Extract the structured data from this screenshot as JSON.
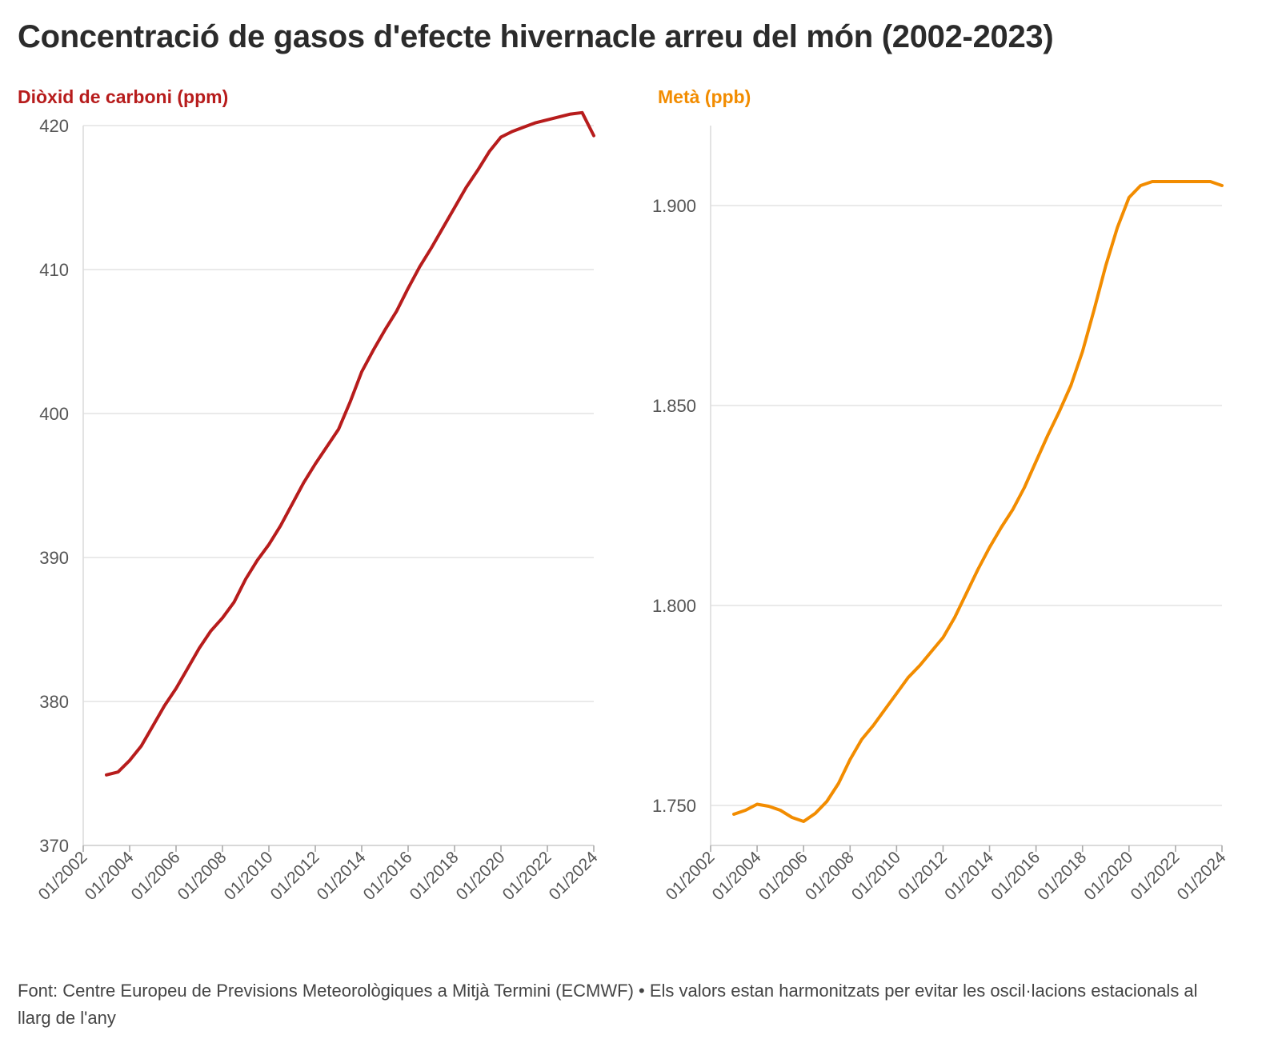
{
  "title": "Concentració de gasos d'efecte hivernacle arreu del món (2002-2023)",
  "footer": "Font: Centre Europeu de Previsions Meteorològiques a Mitjà Termini (ECMWF) • Els valors estan harmonitzats per evitar les oscil·lacions estacionals al llarg de l'any",
  "chart_data": [
    {
      "type": "line",
      "title": "Diòxid de carboni (ppm)",
      "title_color": "#b71c1c",
      "line_color": "#b71c1c",
      "xlabel": "",
      "ylabel": "",
      "xlim": [
        "2002-01",
        "2024-01"
      ],
      "ylim": [
        370,
        420
      ],
      "x_ticks": [
        "01/2002",
        "01/2004",
        "01/2006",
        "01/2008",
        "01/2010",
        "01/2012",
        "01/2014",
        "01/2016",
        "01/2018",
        "01/2020",
        "01/2022",
        "01/2024"
      ],
      "y_ticks": [
        370,
        380,
        390,
        400,
        410,
        420
      ],
      "y_tick_labels": [
        "370",
        "380",
        "390",
        "400",
        "410",
        "420"
      ],
      "grid": true,
      "series": [
        {
          "x": [
            "2003-01",
            "2003-07",
            "2004-01",
            "2004-07",
            "2005-01",
            "2005-07",
            "2006-01",
            "2006-07",
            "2007-01",
            "2007-07",
            "2008-01",
            "2008-07",
            "2009-01",
            "2009-07",
            "2010-01",
            "2010-07",
            "2011-01",
            "2011-07",
            "2012-01",
            "2012-07",
            "2013-01",
            "2013-07",
            "2014-01",
            "2014-07",
            "2015-01",
            "2015-07",
            "2016-01",
            "2016-07",
            "2017-01",
            "2017-07",
            "2018-01",
            "2018-07",
            "2019-01",
            "2019-07",
            "2020-01",
            "2020-07",
            "2021-01",
            "2021-07",
            "2022-01",
            "2022-07",
            "2023-01",
            "2023-07",
            "2024-01"
          ],
          "y": [
            374.9,
            375.1,
            375.9,
            376.9,
            378.3,
            379.7,
            380.9,
            382.3,
            383.7,
            384.9,
            385.8,
            386.9,
            388.5,
            389.8,
            390.9,
            392.2,
            393.7,
            395.2,
            396.5,
            397.7,
            398.9,
            400.8,
            402.9,
            404.4,
            405.8,
            407.1,
            408.7,
            410.2,
            411.5,
            412.9,
            414.3,
            415.7,
            416.9,
            418.2,
            419.2,
            419.6,
            419.9,
            420.2,
            420.4,
            420.6,
            420.8,
            420.9,
            419.3
          ]
        }
      ]
    },
    {
      "type": "line",
      "title": "Metà (ppb)",
      "title_color": "#f28c00",
      "line_color": "#f28c00",
      "xlabel": "",
      "ylabel": "",
      "xlim": [
        "2002-01",
        "2024-01"
      ],
      "ylim": [
        1740,
        1920
      ],
      "x_ticks": [
        "01/2002",
        "01/2004",
        "01/2006",
        "01/2008",
        "01/2010",
        "01/2012",
        "01/2014",
        "01/2016",
        "01/2018",
        "01/2020",
        "01/2022",
        "01/2024"
      ],
      "y_ticks": [
        1750,
        1800,
        1850,
        1900
      ],
      "y_tick_labels": [
        "1.750",
        "1.800",
        "1.850",
        "1.900"
      ],
      "grid": true,
      "series": [
        {
          "x": [
            "2003-01",
            "2003-07",
            "2004-01",
            "2004-07",
            "2005-01",
            "2005-07",
            "2006-01",
            "2006-07",
            "2007-01",
            "2007-07",
            "2008-01",
            "2008-07",
            "2009-01",
            "2009-07",
            "2010-01",
            "2010-07",
            "2011-01",
            "2011-07",
            "2012-01",
            "2012-07",
            "2013-01",
            "2013-07",
            "2014-01",
            "2014-07",
            "2015-01",
            "2015-07",
            "2016-01",
            "2016-07",
            "2017-01",
            "2017-07",
            "2018-01",
            "2018-07",
            "2019-01",
            "2019-07",
            "2020-01",
            "2020-07",
            "2021-01",
            "2021-07",
            "2022-01",
            "2022-07",
            "2023-01",
            "2023-07",
            "2024-01"
          ],
          "y": [
            1747.8,
            1748.8,
            1750.3,
            1749.8,
            1748.8,
            1747.0,
            1746.0,
            1748.0,
            1751.0,
            1755.5,
            1761.5,
            1766.5,
            1770.0,
            1774.0,
            1778.0,
            1782.0,
            1785.0,
            1788.5,
            1792.0,
            1797.0,
            1803.0,
            1809.0,
            1814.5,
            1819.5,
            1824.0,
            1829.5,
            1836.0,
            1842.5,
            1848.5,
            1855.0,
            1863.5,
            1874.0,
            1885.0,
            1894.5,
            1902.0,
            1905.0,
            1906.0,
            1906.0,
            1906.0,
            1906.0,
            1906.0,
            1906.0,
            1905.0
          ]
        }
      ]
    }
  ]
}
